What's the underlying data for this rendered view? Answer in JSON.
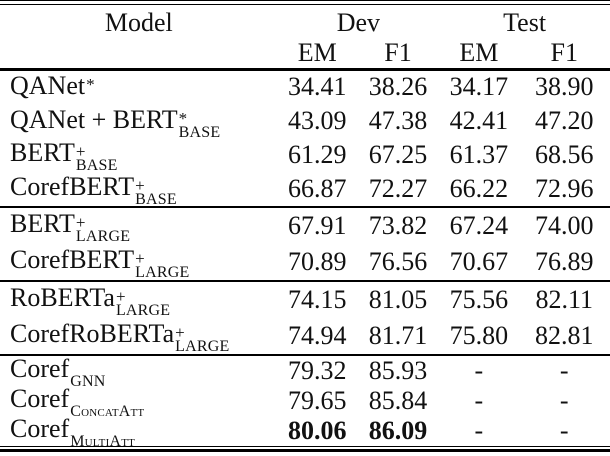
{
  "table": {
    "header": {
      "model": "Model",
      "dev": "Dev",
      "test": "Test",
      "dev_em": "EM",
      "dev_f1": "F1",
      "test_em": "EM",
      "test_f1": "F1"
    },
    "groups": [
      {
        "rows": [
          {
            "model": {
              "text": "QANet",
              "sup": "*",
              "sub": ""
            },
            "cells": [
              "34.41",
              "38.26",
              "34.17",
              "38.90"
            ],
            "bold": []
          },
          {
            "model": {
              "text": "QANet + BERT",
              "sup": "*",
              "sub": "BASE"
            },
            "cells": [
              "43.09",
              "47.38",
              "42.41",
              "47.20"
            ],
            "bold": []
          },
          {
            "model": {
              "text": "BERT",
              "sup": "+",
              "sub": "BASE"
            },
            "cells": [
              "61.29",
              "67.25",
              "61.37",
              "68.56"
            ],
            "bold": []
          },
          {
            "model": {
              "text": "CorefBERT",
              "sup": "+",
              "sub": "BASE"
            },
            "cells": [
              "66.87",
              "72.27",
              "66.22",
              "72.96"
            ],
            "bold": []
          }
        ]
      },
      {
        "rows": [
          {
            "model": {
              "text": "BERT",
              "sup": "+",
              "sub": "LARGE"
            },
            "cells": [
              "67.91",
              "73.82",
              "67.24",
              "74.00"
            ],
            "bold": []
          },
          {
            "model": {
              "text": "CorefBERT",
              "sup": "+",
              "sub": "LARGE"
            },
            "cells": [
              "70.89",
              "76.56",
              "70.67",
              "76.89"
            ],
            "bold": []
          }
        ]
      },
      {
        "rows": [
          {
            "model": {
              "text": "RoBERTa",
              "sup": "+",
              "sub": "LARGE"
            },
            "cells": [
              "74.15",
              "81.05",
              "75.56",
              "82.11"
            ],
            "bold": []
          },
          {
            "model": {
              "text": "CorefRoBERTa",
              "sup": "+",
              "sub": "LARGE"
            },
            "cells": [
              "74.94",
              "81.71",
              "75.80",
              "82.81"
            ],
            "bold": []
          }
        ]
      },
      {
        "rows": [
          {
            "model": {
              "text": "Coref",
              "sup": "",
              "sub": "GNN"
            },
            "cells": [
              "79.32",
              "85.93",
              "-",
              "-"
            ],
            "bold": []
          },
          {
            "model": {
              "text": "Coref",
              "sup": "",
              "sub": "ConcatAtt"
            },
            "cells": [
              "79.65",
              "85.84",
              "-",
              "-"
            ],
            "bold": []
          },
          {
            "model": {
              "text": "Coref",
              "sup": "",
              "sub": "MultiAtt"
            },
            "cells": [
              "80.06",
              "86.09",
              "-",
              "-"
            ],
            "bold": [
              0,
              1
            ]
          }
        ]
      }
    ]
  }
}
